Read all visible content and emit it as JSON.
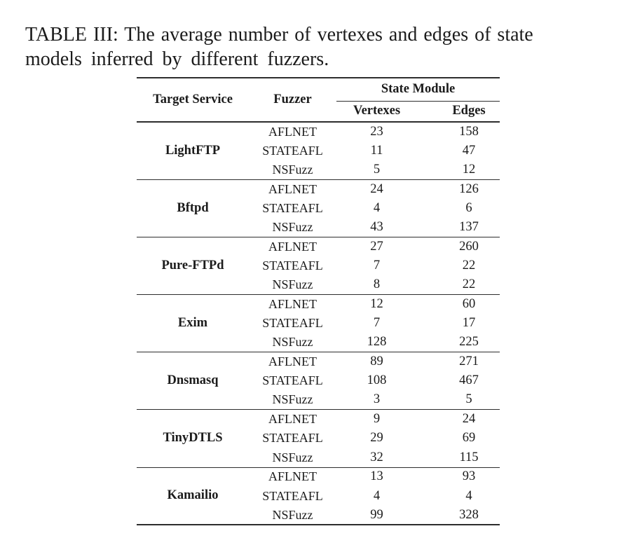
{
  "caption": {
    "line1": "TABLE III: The average number of vertexes and edges of state",
    "line2": "models inferred by different fuzzers."
  },
  "table": {
    "headers": {
      "target_service": "Target Service",
      "fuzzer": "Fuzzer",
      "state_module": "State Module",
      "vertexes": "Vertexes",
      "edges": "Edges"
    },
    "groups": [
      {
        "service": "LightFTP",
        "rows": [
          {
            "fuzzer": "AFLNET",
            "vertexes": "23",
            "edges": "158"
          },
          {
            "fuzzer": "STATEAFL",
            "vertexes": "11",
            "edges": "47"
          },
          {
            "fuzzer": "NSFuzz",
            "vertexes": "5",
            "edges": "12"
          }
        ]
      },
      {
        "service": "Bftpd",
        "rows": [
          {
            "fuzzer": "AFLNET",
            "vertexes": "24",
            "edges": "126"
          },
          {
            "fuzzer": "STATEAFL",
            "vertexes": "4",
            "edges": "6"
          },
          {
            "fuzzer": "NSFuzz",
            "vertexes": "43",
            "edges": "137"
          }
        ]
      },
      {
        "service": "Pure-FTPd",
        "rows": [
          {
            "fuzzer": "AFLNET",
            "vertexes": "27",
            "edges": "260"
          },
          {
            "fuzzer": "STATEAFL",
            "vertexes": "7",
            "edges": "22"
          },
          {
            "fuzzer": "NSFuzz",
            "vertexes": "8",
            "edges": "22"
          }
        ]
      },
      {
        "service": "Exim",
        "rows": [
          {
            "fuzzer": "AFLNET",
            "vertexes": "12",
            "edges": "60"
          },
          {
            "fuzzer": "STATEAFL",
            "vertexes": "7",
            "edges": "17"
          },
          {
            "fuzzer": "NSFuzz",
            "vertexes": "128",
            "edges": "225"
          }
        ]
      },
      {
        "service": "Dnsmasq",
        "rows": [
          {
            "fuzzer": "AFLNET",
            "vertexes": "89",
            "edges": "271"
          },
          {
            "fuzzer": "STATEAFL",
            "vertexes": "108",
            "edges": "467"
          },
          {
            "fuzzer": "NSFuzz",
            "vertexes": "3",
            "edges": "5"
          }
        ]
      },
      {
        "service": "TinyDTLS",
        "rows": [
          {
            "fuzzer": "AFLNET",
            "vertexes": "9",
            "edges": "24"
          },
          {
            "fuzzer": "STATEAFL",
            "vertexes": "29",
            "edges": "69"
          },
          {
            "fuzzer": "NSFuzz",
            "vertexes": "32",
            "edges": "115"
          }
        ]
      },
      {
        "service": "Kamailio",
        "rows": [
          {
            "fuzzer": "AFLNET",
            "vertexes": "13",
            "edges": "93"
          },
          {
            "fuzzer": "STATEAFL",
            "vertexes": "4",
            "edges": "4"
          },
          {
            "fuzzer": "NSFuzz",
            "vertexes": "99",
            "edges": "328"
          }
        ]
      }
    ]
  },
  "colors": {
    "text": "#1b1b1b",
    "rule": "#2d2d2d",
    "background": "#ffffff"
  }
}
